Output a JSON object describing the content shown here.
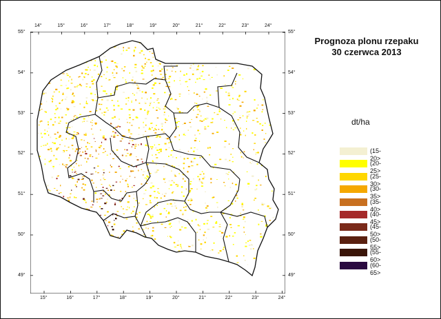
{
  "title": "Prognoza plonu rzepaku",
  "subtitle": "30 czerwca 2013",
  "unit": "dt/ha",
  "axes": {
    "top_lon_labels": [
      "14°",
      "15°",
      "16°",
      "17°",
      "18°",
      "19°",
      "20°",
      "21°",
      "22°",
      "23°",
      "24°"
    ],
    "bottom_lon_labels": [
      "15°",
      "16°",
      "17°",
      "18°",
      "19°",
      "20°",
      "21°",
      "22°",
      "23°",
      "24°"
    ],
    "left_lat_labels": [
      "55°",
      "54°",
      "53°",
      "52°",
      "51°",
      "50°",
      "49°"
    ],
    "right_lat_labels": [
      "55°",
      "54°",
      "53°",
      "52°",
      "51°",
      "50°",
      "49°"
    ]
  },
  "legend": [
    {
      "label": "(15-20>",
      "color": "#f4f0d2"
    },
    {
      "label": "(20-25>",
      "color": "#ffff00"
    },
    {
      "label": "(25-30>",
      "color": "#ffd700"
    },
    {
      "label": "(30-35>",
      "color": "#f5a800"
    },
    {
      "label": "(35-40>",
      "color": "#c87020"
    },
    {
      "label": "(40-45>",
      "color": "#a52a2a"
    },
    {
      "label": "(45-50>",
      "color": "#7a2a1a"
    },
    {
      "label": "(50-55>",
      "color": "#5a2010"
    },
    {
      "label": "(55-60>",
      "color": "#3a1508"
    },
    {
      "label": "(60-65>",
      "color": "#2a0a40"
    }
  ]
}
